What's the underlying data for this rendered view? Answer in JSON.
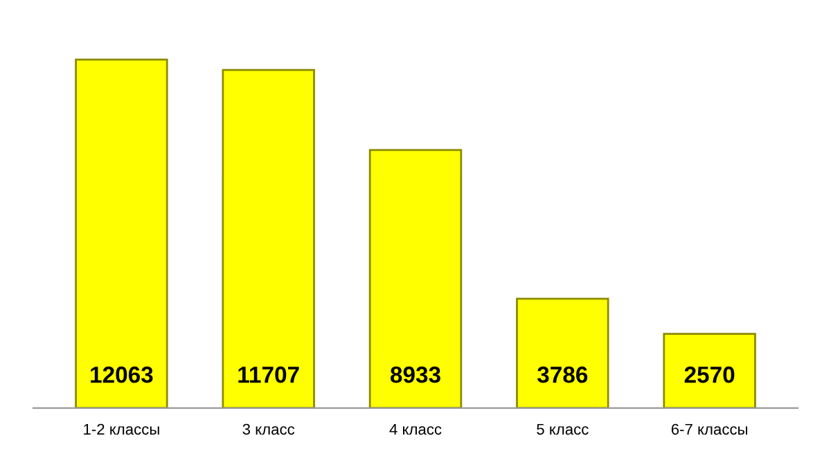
{
  "chart_data": {
    "type": "bar",
    "categories": [
      "1-2 классы",
      "3 класс",
      "4 класс",
      "5 класс",
      "6-7 классы"
    ],
    "values": [
      12063,
      11707,
      8933,
      3786,
      2570
    ],
    "color": "#ffff00",
    "data_labels": true
  }
}
